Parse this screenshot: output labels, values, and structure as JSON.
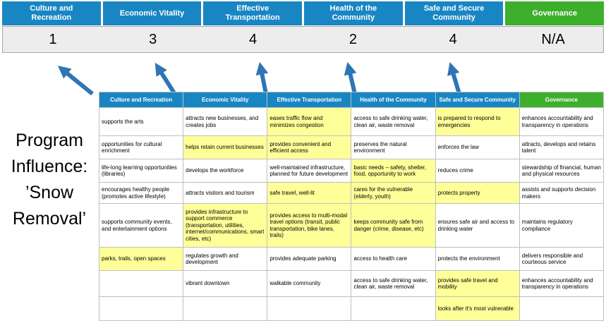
{
  "page": {
    "title": "Program Influence: ’Snow Removal’"
  },
  "colors": {
    "blue": "#1986c4",
    "green": "#3daf2c",
    "yellow": "#ffff99",
    "arrow": "#2e75b6",
    "band": "#ededed",
    "band_border": "#a6a6a6",
    "grid": "#bfbfbf"
  },
  "scoreboard": {
    "columns": [
      {
        "label": "Culture and Recreation",
        "score": "1",
        "theme": "blue"
      },
      {
        "label": "Economic Vitality",
        "score": "3",
        "theme": "blue"
      },
      {
        "label": "Effective Transportation",
        "score": "4",
        "theme": "blue"
      },
      {
        "label": "Health of the Community",
        "score": "2",
        "theme": "blue"
      },
      {
        "label": "Safe and Secure Community",
        "score": "4",
        "theme": "blue"
      },
      {
        "label": "Governance",
        "score": "N/A",
        "theme": "green"
      }
    ]
  },
  "matrix": {
    "headers": [
      {
        "label": "Culture and Recreation",
        "theme": "blue"
      },
      {
        "label": "Economic Vitality",
        "theme": "blue"
      },
      {
        "label": "Effective Transportation",
        "theme": "blue"
      },
      {
        "label": "Health of the Community",
        "theme": "blue"
      },
      {
        "label": "Safe and Secure Community",
        "theme": "blue"
      },
      {
        "label": "Governance",
        "theme": "green"
      }
    ],
    "rows": [
      [
        {
          "text": "supports the arts",
          "highlight": false
        },
        {
          "text": "attracts new businesses, and creates jobs",
          "highlight": false
        },
        {
          "text": "eases traffic flow and minimizes congestion",
          "highlight": true
        },
        {
          "text": "access to safe drinking water, clean air, waste removal",
          "highlight": false
        },
        {
          "text": "is prepared to respond to emergencies",
          "highlight": true
        },
        {
          "text": "enhances accountability and transparency in operations",
          "highlight": false
        }
      ],
      [
        {
          "text": "opportunities for cultural enrichment",
          "highlight": false
        },
        {
          "text": "helps retain current businesses",
          "highlight": true
        },
        {
          "text": "provides convenient and efficient access",
          "highlight": true
        },
        {
          "text": "preserves the natural environment",
          "highlight": false
        },
        {
          "text": "enforces the law",
          "highlight": false
        },
        {
          "text": "attracts, develops and retains talent",
          "highlight": false
        }
      ],
      [
        {
          "text": "life-long learning opportunities (libraries)",
          "highlight": false
        },
        {
          "text": "develops the workforce",
          "highlight": false
        },
        {
          "text": "well-maintained infrastructure, planned for future development",
          "highlight": false
        },
        {
          "text": "basic needs – safety, shelter, food, opportunity to work",
          "highlight": true
        },
        {
          "text": "reduces crime",
          "highlight": false
        },
        {
          "text": "stewardship of financial, human and physical resources",
          "highlight": false
        }
      ],
      [
        {
          "text": "encourages healthy people (promotes active lifestyle)",
          "highlight": false
        },
        {
          "text": "attracts visitors and tourism",
          "highlight": false
        },
        {
          "text": "safe travel, well-lit",
          "highlight": true
        },
        {
          "text": "cares for the vulnerable (elderly, youth)",
          "highlight": true
        },
        {
          "text": "protects property",
          "highlight": true
        },
        {
          "text": "assists and supports decision makers",
          "highlight": false
        }
      ],
      [
        {
          "text": "supports community events, and entertainment options",
          "highlight": false
        },
        {
          "text": "provides infrastructure to support commerce (transportation, utilities, internet/communications, smart cities, etc)",
          "highlight": true
        },
        {
          "text": "provides access to multi-modal travel options (transit, public transportation, bike lanes, trails)",
          "highlight": true
        },
        {
          "text": "keeps community safe from danger (crime, disease, etc)",
          "highlight": true
        },
        {
          "text": "ensures safe air and access to drinking water",
          "highlight": false
        },
        {
          "text": "maintains regulatory compliance",
          "highlight": false
        }
      ],
      [
        {
          "text": "parks, trails, open spaces",
          "highlight": true
        },
        {
          "text": "regulates growth and development",
          "highlight": false
        },
        {
          "text": "provides adequate parking",
          "highlight": false
        },
        {
          "text": "access to health care",
          "highlight": false
        },
        {
          "text": "protects the environment",
          "highlight": false
        },
        {
          "text": "delivers responsible and courteous service",
          "highlight": false
        }
      ],
      [
        {
          "text": "",
          "highlight": false
        },
        {
          "text": "vibrant downtown",
          "highlight": false
        },
        {
          "text": "walkable community",
          "highlight": false
        },
        {
          "text": "access to safe drinking water, clean air, waste removal",
          "highlight": false
        },
        {
          "text": "provides safe travel and mobility",
          "highlight": true
        },
        {
          "text": "enhances accountability and transparency in operations",
          "highlight": false
        }
      ],
      [
        {
          "text": "",
          "highlight": false
        },
        {
          "text": "",
          "highlight": false
        },
        {
          "text": "",
          "highlight": false
        },
        {
          "text": "",
          "highlight": false
        },
        {
          "text": "looks after it's most vulnerable",
          "highlight": true
        },
        {
          "text": "",
          "highlight": false
        }
      ]
    ]
  }
}
